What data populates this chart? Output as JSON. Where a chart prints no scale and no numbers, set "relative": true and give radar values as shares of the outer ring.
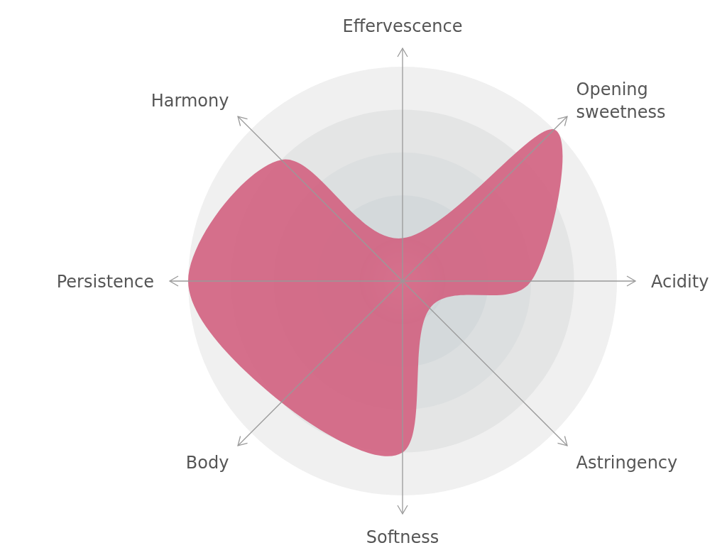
{
  "chart_data": {
    "type": "radar",
    "relative": true,
    "grid": true,
    "categories": [
      "Effervescence",
      "Opening sweetness",
      "Acidity",
      "Astringency",
      "Softness",
      "Body",
      "Persistence",
      "Harmony"
    ],
    "series": [
      {
        "color": "#d2607f",
        "values": [
          0.2,
          1.0,
          0.6,
          0.18,
          0.8,
          0.8,
          1.0,
          0.8
        ]
      }
    ]
  }
}
